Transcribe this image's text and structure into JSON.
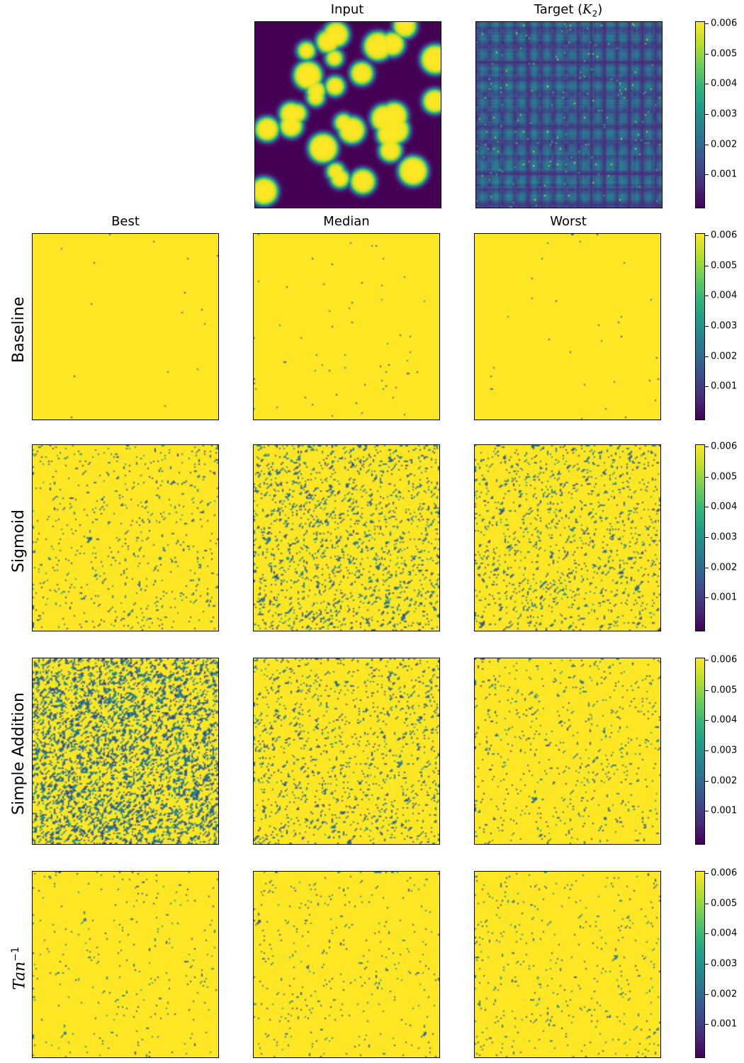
{
  "chart_data": {
    "type": "heatmap",
    "colormap": "viridis",
    "vmin": 0.0,
    "vmax": 0.006,
    "colorbar_ticks": [
      "0.001",
      "0.002",
      "0.003",
      "0.004",
      "0.005",
      "0.006"
    ],
    "top_panels": [
      {
        "id": "input",
        "title": "Input",
        "pattern": "blobs"
      },
      {
        "id": "target",
        "title_prefix": "Target (",
        "title_var": "K",
        "title_sub": "2",
        "title_suffix": ")",
        "pattern": "target"
      }
    ],
    "column_titles": [
      "Best",
      "Median",
      "Worst"
    ],
    "rows": [
      {
        "label": "Baseline",
        "density": [
          0.08,
          0.15,
          0.12
        ]
      },
      {
        "label": "Sigmoid",
        "density": [
          0.35,
          0.5,
          0.45
        ]
      },
      {
        "label": "Simple Addition",
        "density": [
          0.7,
          0.45,
          0.35
        ]
      },
      {
        "label_var": "Tan",
        "label_sup": "−1",
        "density": [
          0.25,
          0.28,
          0.3
        ]
      }
    ]
  }
}
